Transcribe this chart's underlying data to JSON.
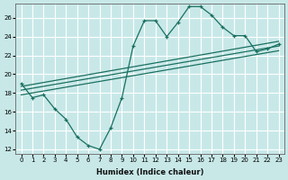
{
  "background_color": "#c8e8e8",
  "grid_color": "#ffffff",
  "line_color": "#1a7060",
  "xlabel": "Humidex (Indice chaleur)",
  "xlim": [
    -0.5,
    23.5
  ],
  "ylim": [
    11.5,
    27.5
  ],
  "yticks": [
    12,
    14,
    16,
    18,
    20,
    22,
    24,
    26
  ],
  "xticks": [
    0,
    1,
    2,
    3,
    4,
    5,
    6,
    7,
    8,
    9,
    10,
    11,
    12,
    13,
    14,
    15,
    16,
    17,
    18,
    19,
    20,
    21,
    22,
    23
  ],
  "zigzag_x": [
    0,
    1,
    2,
    3,
    4,
    5,
    6,
    7,
    8,
    9,
    10,
    11,
    12,
    13,
    14,
    15,
    16,
    17,
    18,
    19,
    20,
    21,
    22,
    23
  ],
  "zigzag_y": [
    19.0,
    17.5,
    17.8,
    16.3,
    15.2,
    13.3,
    12.4,
    12.0,
    14.3,
    17.5,
    23.0,
    25.7,
    25.7,
    24.0,
    25.5,
    27.2,
    27.2,
    26.3,
    25.0,
    24.1,
    24.1,
    22.4,
    22.7,
    23.2
  ],
  "trend1_x": [
    0,
    23
  ],
  "trend1_y": [
    18.7,
    23.5
  ],
  "trend2_x": [
    0,
    23
  ],
  "trend2_y": [
    18.3,
    23.0
  ],
  "trend3_x": [
    0,
    23
  ],
  "trend3_y": [
    17.8,
    22.5
  ]
}
